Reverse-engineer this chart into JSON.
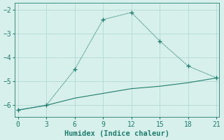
{
  "line1_x": [
    0,
    3,
    6,
    9,
    12,
    15,
    18,
    21
  ],
  "line1_y": [
    -6.2,
    -6.0,
    -4.5,
    -2.4,
    -2.1,
    -3.3,
    -4.35,
    -4.85
  ],
  "line2_x": [
    0,
    3,
    6,
    9,
    12,
    15,
    18,
    21
  ],
  "line2_y": [
    -6.2,
    -6.0,
    -5.7,
    -5.5,
    -5.3,
    -5.2,
    -5.05,
    -4.85
  ],
  "line_color": "#1e7d6e",
  "bg_color": "#d8f0ec",
  "grid_color": "#b8ddd8",
  "xlabel": "Humidex (Indice chaleur)",
  "ylim": [
    -6.5,
    -1.7
  ],
  "xlim": [
    -0.3,
    21.3
  ],
  "xticks": [
    0,
    3,
    6,
    9,
    12,
    15,
    18,
    21
  ],
  "yticks": [
    -6,
    -5,
    -4,
    -3,
    -2
  ],
  "xlabel_fontsize": 7.5,
  "tick_fontsize": 7
}
